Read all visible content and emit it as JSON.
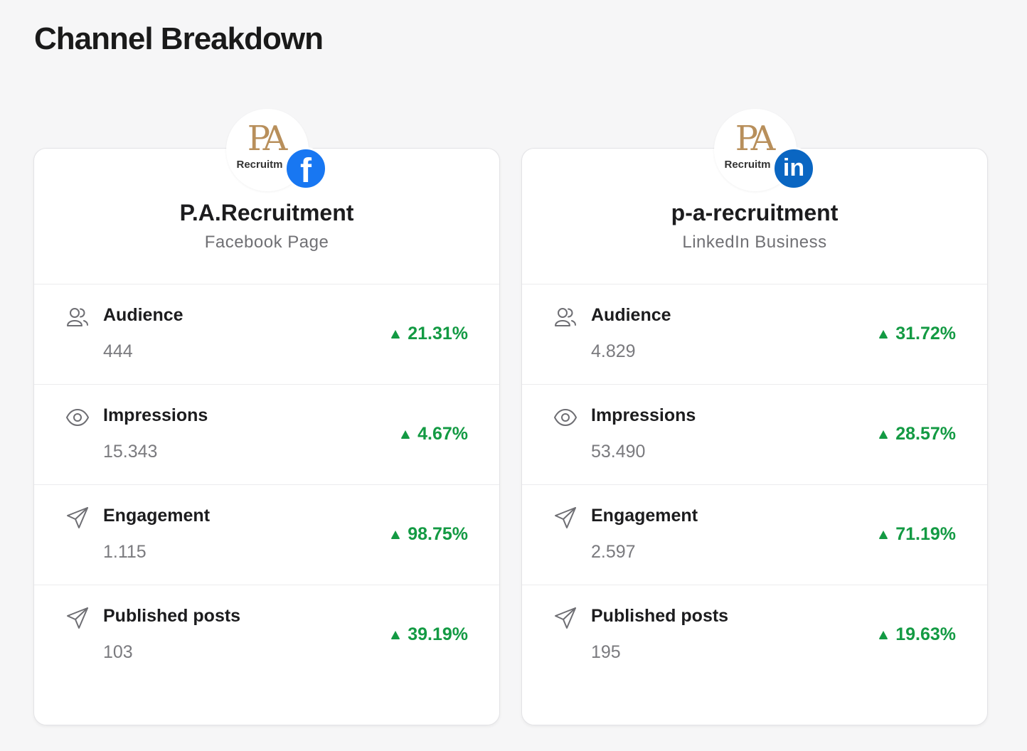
{
  "page": {
    "title": "Channel Breakdown"
  },
  "channels": [
    {
      "name": "P.A.Recruitment",
      "type": "Facebook Page",
      "network": "facebook",
      "logo": {
        "mark": "PA",
        "text": "Recruitm"
      },
      "badge_glyph": "f",
      "metrics": [
        {
          "label": "Audience",
          "value": "444",
          "change": "21.31%",
          "icon": "users-icon"
        },
        {
          "label": "Impressions",
          "value": "15.343",
          "change": "4.67%",
          "icon": "eye-icon"
        },
        {
          "label": "Engagement",
          "value": "1.115",
          "change": "98.75%",
          "icon": "send-icon"
        },
        {
          "label": "Published posts",
          "value": "103",
          "change": "39.19%",
          "icon": "send-icon"
        }
      ]
    },
    {
      "name": "p-a-recruitment",
      "type": "LinkedIn Business",
      "network": "linkedin",
      "logo": {
        "mark": "PA",
        "text": "Recruitm"
      },
      "badge_glyph": "in",
      "metrics": [
        {
          "label": "Audience",
          "value": "4.829",
          "change": "31.72%",
          "icon": "users-icon"
        },
        {
          "label": "Impressions",
          "value": "53.490",
          "change": "28.57%",
          "icon": "eye-icon"
        },
        {
          "label": "Engagement",
          "value": "2.597",
          "change": "71.19%",
          "icon": "send-icon"
        },
        {
          "label": "Published posts",
          "value": "195",
          "change": "19.63%",
          "icon": "send-icon"
        }
      ]
    }
  ],
  "colors": {
    "positive": "#139a43",
    "facebook": "#1877f2",
    "linkedin": "#0a66c2",
    "logo_gold": "#b88f5b"
  }
}
